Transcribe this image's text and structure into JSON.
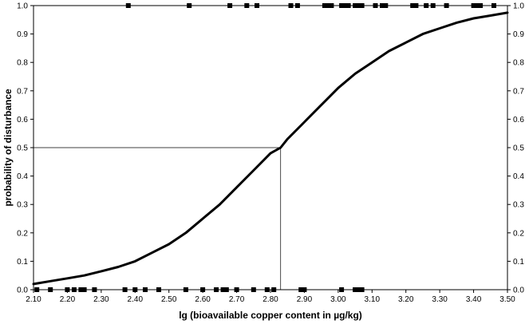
{
  "chart_data": {
    "type": "line",
    "title": "",
    "xlabel": "lg (bioavailable copper content in µg/kg)",
    "ylabel": "probability of disturbance",
    "xlim": [
      2.1,
      3.5
    ],
    "ylim": [
      0.0,
      1.0
    ],
    "x_ticks": [
      "2.10",
      "2.20",
      "2.30",
      "2.40",
      "2.50",
      "2.60",
      "2.70",
      "2.80",
      "2.90",
      "3.00",
      "3.10",
      "3.20",
      "3.30",
      "3.40",
      "3.50"
    ],
    "y_ticks": [
      "0.0",
      "0.1",
      "0.2",
      "0.3",
      "0.4",
      "0.5",
      "0.6",
      "0.7",
      "0.8",
      "0.9",
      "1.0"
    ],
    "grid": false,
    "secondary_y_axis": true,
    "series": [
      {
        "kind": "logistic-curve",
        "x": [
          2.1,
          2.15,
          2.2,
          2.25,
          2.3,
          2.35,
          2.4,
          2.45,
          2.5,
          2.55,
          2.6,
          2.65,
          2.7,
          2.75,
          2.8,
          2.83,
          2.85,
          2.9,
          2.95,
          3.0,
          3.05,
          3.1,
          3.15,
          3.2,
          3.25,
          3.3,
          3.35,
          3.4,
          3.45,
          3.5
        ],
        "y": [
          0.02,
          0.03,
          0.04,
          0.05,
          0.065,
          0.08,
          0.1,
          0.13,
          0.16,
          0.2,
          0.25,
          0.3,
          0.36,
          0.42,
          0.48,
          0.5,
          0.53,
          0.59,
          0.65,
          0.71,
          0.76,
          0.8,
          0.84,
          0.87,
          0.9,
          0.92,
          0.94,
          0.955,
          0.965,
          0.975
        ]
      },
      {
        "kind": "observations-undisturbed",
        "x": [
          2.11,
          2.15,
          2.2,
          2.22,
          2.24,
          2.25,
          2.28,
          2.37,
          2.4,
          2.43,
          2.47,
          2.55,
          2.6,
          2.64,
          2.66,
          2.67,
          2.7,
          2.75,
          2.79,
          2.81,
          2.89,
          2.9,
          3.01,
          3.05,
          3.06,
          3.07
        ],
        "y": [
          0,
          0,
          0,
          0,
          0,
          0,
          0,
          0,
          0,
          0,
          0,
          0,
          0,
          0,
          0,
          0,
          0,
          0,
          0,
          0,
          0,
          0,
          0,
          0,
          0,
          0
        ]
      },
      {
        "kind": "observations-disturbed",
        "x": [
          2.38,
          2.56,
          2.68,
          2.73,
          2.76,
          2.86,
          2.88,
          2.96,
          2.97,
          2.98,
          3.01,
          3.02,
          3.03,
          3.05,
          3.06,
          3.07,
          3.11,
          3.13,
          3.14,
          3.22,
          3.23,
          3.26,
          3.28,
          3.32,
          3.4,
          3.41,
          3.42,
          3.46
        ],
        "y": [
          1,
          1,
          1,
          1,
          1,
          1,
          1,
          1,
          1,
          1,
          1,
          1,
          1,
          1,
          1,
          1,
          1,
          1,
          1,
          1,
          1,
          1,
          1,
          1,
          1,
          1,
          1,
          1
        ]
      }
    ],
    "reference_lines": {
      "x": 2.83,
      "y": 0.5
    }
  }
}
